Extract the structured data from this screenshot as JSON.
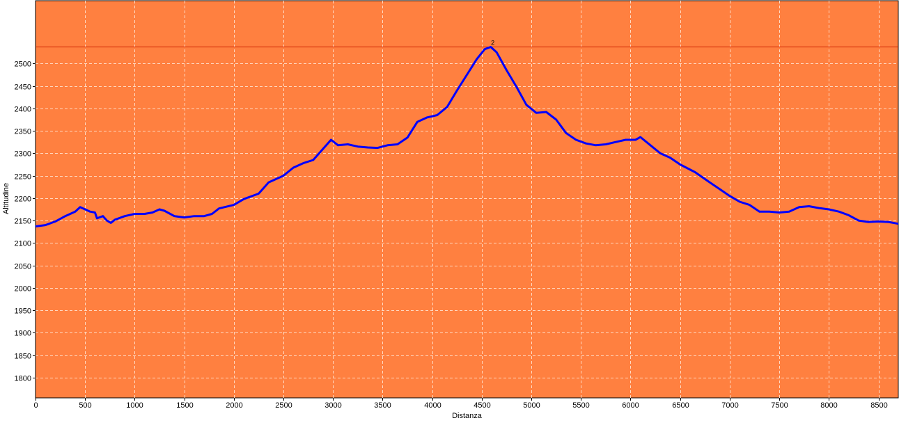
{
  "colors": {
    "plot_background": "#FF8040",
    "grid": "#FFD9C2",
    "series_line": "#0000FF",
    "reference_line": "#CC2200",
    "axis": "#000000",
    "page_background": "#FFFFFF"
  },
  "chart_data": {
    "type": "line",
    "title": "",
    "xlabel": "Distanza",
    "ylabel": "Altitudine",
    "xlim": [
      0,
      8700
    ],
    "ylim": [
      1755,
      2640
    ],
    "x_ticks": [
      0,
      500,
      1000,
      1500,
      2000,
      2500,
      3000,
      3500,
      4000,
      4500,
      5000,
      5500,
      6000,
      6500,
      7000,
      7500,
      8000,
      8500
    ],
    "y_ticks": [
      1800,
      1850,
      1900,
      1950,
      2000,
      2050,
      2100,
      2150,
      2200,
      2250,
      2300,
      2350,
      2400,
      2450,
      2500
    ],
    "grid": true,
    "legend": "none",
    "reference_line": {
      "y": 2537
    },
    "annotations": [
      {
        "text": "2",
        "x": 4590,
        "y": 2537
      }
    ],
    "series": [
      {
        "points": [
          [
            0,
            2137
          ],
          [
            100,
            2140
          ],
          [
            200,
            2148
          ],
          [
            300,
            2160
          ],
          [
            400,
            2170
          ],
          [
            450,
            2180
          ],
          [
            500,
            2175
          ],
          [
            550,
            2170
          ],
          [
            600,
            2168
          ],
          [
            620,
            2155
          ],
          [
            680,
            2160
          ],
          [
            720,
            2150
          ],
          [
            760,
            2145
          ],
          [
            800,
            2152
          ],
          [
            900,
            2160
          ],
          [
            1000,
            2165
          ],
          [
            1100,
            2165
          ],
          [
            1180,
            2168
          ],
          [
            1250,
            2175
          ],
          [
            1300,
            2172
          ],
          [
            1400,
            2160
          ],
          [
            1500,
            2157
          ],
          [
            1600,
            2160
          ],
          [
            1700,
            2160
          ],
          [
            1780,
            2165
          ],
          [
            1850,
            2177
          ],
          [
            2000,
            2185
          ],
          [
            2100,
            2198
          ],
          [
            2250,
            2210
          ],
          [
            2350,
            2235
          ],
          [
            2500,
            2250
          ],
          [
            2600,
            2268
          ],
          [
            2700,
            2278
          ],
          [
            2800,
            2285
          ],
          [
            2900,
            2310
          ],
          [
            2980,
            2330
          ],
          [
            3050,
            2318
          ],
          [
            3150,
            2320
          ],
          [
            3250,
            2315
          ],
          [
            3350,
            2313
          ],
          [
            3450,
            2312
          ],
          [
            3550,
            2318
          ],
          [
            3650,
            2320
          ],
          [
            3750,
            2335
          ],
          [
            3850,
            2370
          ],
          [
            3950,
            2380
          ],
          [
            4050,
            2385
          ],
          [
            4150,
            2403
          ],
          [
            4250,
            2440
          ],
          [
            4350,
            2475
          ],
          [
            4450,
            2510
          ],
          [
            4530,
            2532
          ],
          [
            4590,
            2537
          ],
          [
            4650,
            2525
          ],
          [
            4750,
            2485
          ],
          [
            4850,
            2448
          ],
          [
            4950,
            2408
          ],
          [
            5050,
            2390
          ],
          [
            5150,
            2392
          ],
          [
            5250,
            2375
          ],
          [
            5350,
            2345
          ],
          [
            5450,
            2330
          ],
          [
            5550,
            2322
          ],
          [
            5650,
            2318
          ],
          [
            5750,
            2320
          ],
          [
            5850,
            2325
          ],
          [
            5950,
            2330
          ],
          [
            6050,
            2330
          ],
          [
            6100,
            2336
          ],
          [
            6200,
            2318
          ],
          [
            6300,
            2300
          ],
          [
            6400,
            2290
          ],
          [
            6500,
            2275
          ],
          [
            6650,
            2258
          ],
          [
            6800,
            2235
          ],
          [
            6900,
            2220
          ],
          [
            7000,
            2205
          ],
          [
            7100,
            2192
          ],
          [
            7200,
            2185
          ],
          [
            7300,
            2170
          ],
          [
            7400,
            2170
          ],
          [
            7500,
            2168
          ],
          [
            7600,
            2170
          ],
          [
            7700,
            2180
          ],
          [
            7800,
            2182
          ],
          [
            7900,
            2178
          ],
          [
            8000,
            2175
          ],
          [
            8100,
            2170
          ],
          [
            8200,
            2162
          ],
          [
            8300,
            2150
          ],
          [
            8400,
            2147
          ],
          [
            8500,
            2148
          ],
          [
            8600,
            2147
          ],
          [
            8700,
            2143
          ]
        ]
      }
    ]
  }
}
